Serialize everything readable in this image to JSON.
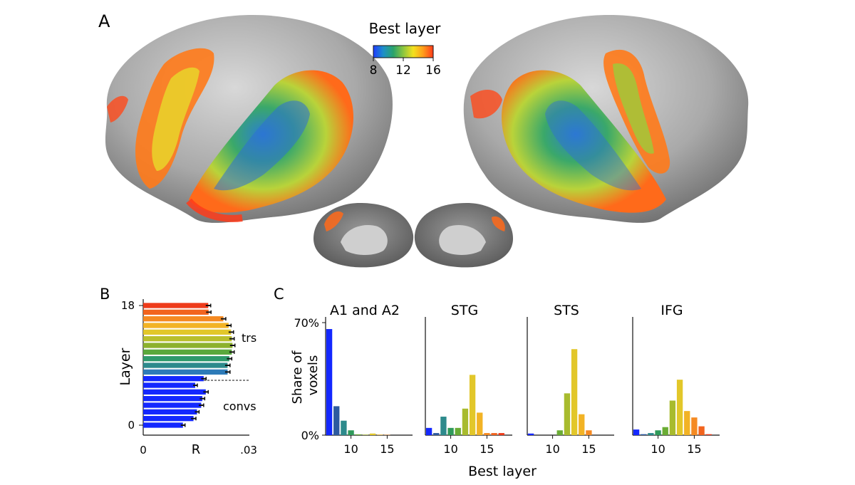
{
  "panel_labels": {
    "a": "A",
    "b": "B",
    "c": "C"
  },
  "colorbar": {
    "title": "Best layer",
    "ticks": [
      "8",
      "12",
      "16"
    ],
    "colors": [
      "#1f3cff",
      "#1e90c8",
      "#2aa36b",
      "#8cc63f",
      "#f3e11f",
      "#ff9c1a",
      "#ff3b1a"
    ]
  },
  "chart_data": [
    {
      "id": "B",
      "type": "bar",
      "orientation": "horizontal",
      "title": "",
      "ylabel": "Layer",
      "xlabel": "R",
      "x_ticks": [
        "0",
        ".03"
      ],
      "y_ticks": [
        "0",
        "18"
      ],
      "xlim": [
        0,
        0.03
      ],
      "layers": [
        0,
        1,
        2,
        3,
        4,
        5,
        6,
        7,
        8,
        9,
        10,
        11,
        12,
        13,
        14,
        15,
        16,
        17,
        18
      ],
      "values": [
        0.0113,
        0.0143,
        0.0153,
        0.0165,
        0.0168,
        0.0178,
        0.0148,
        0.0172,
        0.024,
        0.024,
        0.0245,
        0.0252,
        0.0254,
        0.0252,
        0.025,
        0.0243,
        0.0228,
        0.0186,
        0.0185
      ],
      "errors": [
        0.0006,
        0.0007,
        0.0006,
        0.0007,
        0.0007,
        0.0007,
        0.0006,
        0.0007,
        0.0007,
        0.0007,
        0.0007,
        0.0007,
        0.0007,
        0.0007,
        0.0007,
        0.0007,
        0.0007,
        0.0007,
        0.0007
      ],
      "colors": [
        "#1428ff",
        "#1428ff",
        "#1428ff",
        "#1428ff",
        "#1428ff",
        "#1428ff",
        "#1428ff",
        "#1428ff",
        "#2d7bb8",
        "#2d8a8c",
        "#2f9a6c",
        "#5aa83c",
        "#8cb12e",
        "#b9bf2d",
        "#e2c72a",
        "#f2b325",
        "#f58a22",
        "#f2641e",
        "#ee3b1a"
      ],
      "split_after_layer": 7,
      "annotations": [
        "trs",
        "convs"
      ]
    },
    {
      "id": "C",
      "type": "bar",
      "ylabel": "Share of voxels",
      "xlabel": "Best layer",
      "y_ticks": [
        "0%",
        "70%"
      ],
      "ylim": [
        0,
        0.7
      ],
      "x_ticks": [
        "10",
        "15"
      ],
      "layers": [
        7,
        8,
        9,
        10,
        11,
        12,
        13,
        14,
        15,
        16,
        17
      ],
      "colors": [
        "#1428ff",
        "#2d5aa0",
        "#2d8a8c",
        "#2f9a5a",
        "#6aac34",
        "#a8bb2e",
        "#e2c72a",
        "#f2b325",
        "#f58a22",
        "#f2641e",
        "#ee3b1a"
      ],
      "series": [
        {
          "name": "A1 and A2",
          "values": [
            0.66,
            0.18,
            0.09,
            0.03,
            0.005,
            0.003,
            0.01,
            0.003,
            0.002,
            0.0,
            0.0
          ]
        },
        {
          "name": "STG",
          "values": [
            0.045,
            0.013,
            0.115,
            0.045,
            0.045,
            0.165,
            0.375,
            0.14,
            0.013,
            0.013,
            0.013
          ]
        },
        {
          "name": "STS",
          "values": [
            0.01,
            0.0,
            0.0,
            0.0,
            0.03,
            0.26,
            0.535,
            0.13,
            0.03,
            0.0,
            0.0
          ]
        },
        {
          "name": "IFG",
          "values": [
            0.035,
            0.006,
            0.013,
            0.03,
            0.05,
            0.215,
            0.345,
            0.15,
            0.11,
            0.055,
            0.006
          ]
        }
      ]
    }
  ]
}
